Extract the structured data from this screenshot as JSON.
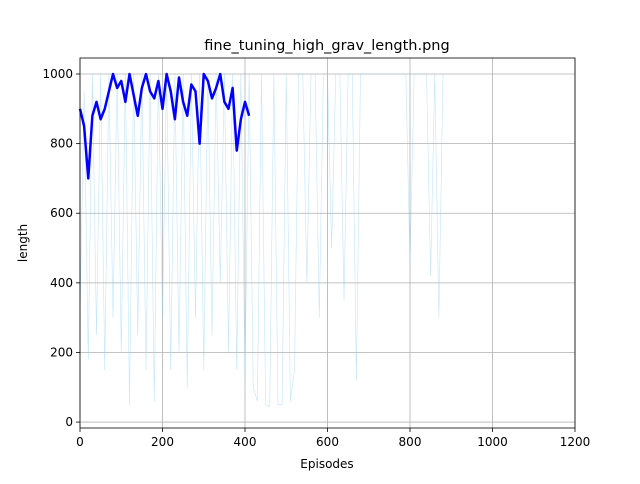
{
  "chart_data": {
    "type": "line",
    "title": "fine_tuning_high_grav_length.png",
    "x_label": "Episodes",
    "y_label": "length",
    "x": [
      0,
      10,
      20,
      30,
      40,
      50,
      60,
      70,
      80,
      90,
      100,
      110,
      120,
      130,
      140,
      150,
      160,
      170,
      180,
      190,
      200,
      210,
      220,
      230,
      240,
      250,
      260,
      270,
      280,
      290,
      300,
      310,
      320,
      330,
      340,
      350,
      360,
      370,
      380,
      390,
      400,
      410,
      420,
      430,
      440,
      450,
      460,
      470,
      480,
      490,
      500,
      510,
      520,
      530,
      540,
      550,
      560,
      570,
      580,
      590,
      600,
      610,
      620,
      630,
      640,
      650,
      660,
      670,
      680,
      690,
      700,
      710,
      720,
      730,
      740,
      750,
      760,
      770,
      780,
      790,
      800,
      810,
      820,
      830,
      840,
      850,
      860,
      870,
      880
    ],
    "series": [
      {
        "color": "#87cefa",
        "linewidth": 0.6,
        "opacity": 0.5,
        "values": [
          300,
          950,
          180,
          1000,
          250,
          1000,
          150,
          1000,
          300,
          1000,
          200,
          1000,
          50,
          1000,
          250,
          1000,
          150,
          1000,
          60,
          1000,
          300,
          1000,
          150,
          1000,
          200,
          1000,
          100,
          1000,
          300,
          1000,
          150,
          1000,
          250,
          1000,
          400,
          1000,
          200,
          1000,
          150,
          1000,
          130,
          1000,
          100,
          60,
          1000,
          50,
          45,
          1000,
          50,
          50,
          1000,
          60,
          150,
          1000,
          1000,
          400,
          1000,
          1000,
          300,
          1000,
          1000,
          500,
          1000,
          1000,
          350,
          1000,
          1000,
          120,
          1000,
          1000,
          1000,
          1000,
          1000,
          1000,
          1000,
          1000,
          1000,
          1000,
          1000,
          1000,
          450,
          1000,
          1000,
          1000,
          1000,
          420,
          1000,
          300,
          1000
        ]
      },
      {
        "color": "#0000ff",
        "linewidth": 2.5,
        "opacity": 1,
        "values": [
          900,
          850,
          700,
          880,
          920,
          870,
          900,
          950,
          1000,
          960,
          980,
          920,
          1000,
          940,
          880,
          960,
          1000,
          950,
          930,
          980,
          900,
          1000,
          950,
          870,
          990,
          920,
          880,
          970,
          950,
          800,
          1000,
          980,
          930,
          960,
          1000,
          920,
          900,
          960,
          780,
          870,
          920,
          880,
          null,
          null,
          null,
          null,
          null,
          null,
          null,
          null,
          null,
          null,
          null,
          null,
          null,
          null,
          null,
          null,
          null,
          null,
          null,
          null,
          null,
          null,
          null,
          null,
          null,
          null,
          null,
          null,
          null,
          null,
          null,
          null,
          null,
          null,
          null,
          null,
          null,
          null,
          null,
          null,
          null,
          null,
          null,
          null,
          null,
          null,
          null
        ]
      }
    ],
    "xlim": [
      0,
      1200
    ],
    "xticks": [
      0,
      200,
      400,
      600,
      800,
      1000,
      1200
    ],
    "ylim": [
      -17,
      1046
    ],
    "yticks": [
      0,
      200,
      400,
      600,
      800,
      1000
    ],
    "grid": true
  }
}
